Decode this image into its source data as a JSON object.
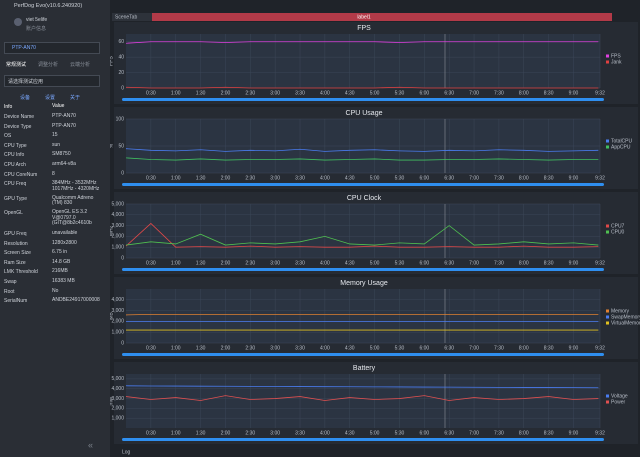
{
  "window": {
    "title": "PerfDog Evo(v10.6.240920)",
    "scene_tab": "SceneTab",
    "label": "label1",
    "log": "Log"
  },
  "sidebar": {
    "user": "viet 5elife",
    "account": "账户信息",
    "device": "PTP-AN70",
    "tabs": [
      "常规测试",
      "调整分析",
      "云端分析"
    ],
    "app_select": "请选择测试应用",
    "sub_tabs": [
      "设备",
      "设置",
      "关于"
    ],
    "info": {
      "header": [
        "Info",
        "Value"
      ],
      "rows": [
        [
          "Device Name",
          "PTP-AN70"
        ],
        [
          "Device Type",
          "PTP-AN70"
        ],
        [
          "OS",
          "15"
        ],
        [
          "CPU Type",
          "sun"
        ],
        [
          "CPU Info",
          "SM8750"
        ],
        [
          "CPU Arch",
          "arm64-v8a"
        ],
        [
          "CPU CoreNum",
          "8"
        ],
        [
          "CPU Freq",
          "384MHz - 3532MHz\n1017MHz - 4320MHz"
        ],
        [
          "GPU Type",
          "Qualcomm Adreno\n(TM) 830"
        ],
        [
          "OpenGL",
          "OpenGL ES 3.2\nV@0797.0\n(GIT@8b2c4610b"
        ],
        [
          "GPU Freq",
          "unavailable"
        ],
        [
          "Resolution",
          "1280x2800"
        ],
        [
          "Screen Size",
          "6.75 in"
        ],
        [
          "Ram Size",
          "14.8 GB"
        ],
        [
          "LMK Threshold",
          "216MB"
        ],
        [
          "Swap",
          "16383 MB"
        ],
        [
          "Root",
          "No"
        ],
        [
          "SerialNum",
          "ANDBE24917000008"
        ]
      ]
    }
  },
  "chart_data": [
    {
      "type": "line",
      "title": "FPS",
      "ylabel": "FPS",
      "xlim": [
        0,
        572
      ],
      "ylim": [
        0,
        70
      ],
      "yticks": [
        0,
        20,
        40,
        60
      ],
      "xticks": [
        {
          "value": 30,
          "label": "0:30"
        },
        {
          "value": 60,
          "label": "1:00"
        },
        {
          "value": 90,
          "label": "1:30"
        },
        {
          "value": 120,
          "label": "2:00"
        },
        {
          "value": 150,
          "label": "2:30"
        },
        {
          "value": 180,
          "label": "3:00"
        },
        {
          "value": 210,
          "label": "3:30"
        },
        {
          "value": 240,
          "label": "4:00"
        },
        {
          "value": 270,
          "label": "4:30"
        },
        {
          "value": 300,
          "label": "5:00"
        },
        {
          "value": 330,
          "label": "5:30"
        },
        {
          "value": 360,
          "label": "6:00"
        },
        {
          "value": 390,
          "label": "6:30"
        },
        {
          "value": 420,
          "label": "7:00"
        },
        {
          "value": 450,
          "label": "7:30"
        },
        {
          "value": 480,
          "label": "8:00"
        },
        {
          "value": 510,
          "label": "8:30"
        },
        {
          "value": 540,
          "label": "9:00"
        },
        {
          "value": 572,
          "label": "9:32"
        }
      ],
      "x": [
        0,
        30,
        60,
        90,
        120,
        150,
        180,
        210,
        240,
        270,
        300,
        330,
        360,
        390,
        420,
        450,
        480,
        510,
        540,
        570
      ],
      "series": [
        {
          "name": "FPS",
          "color": "#e040e0",
          "values": [
            58,
            60,
            60,
            60,
            59,
            60,
            60,
            60,
            60,
            60,
            60,
            59,
            60,
            60,
            60,
            60,
            60,
            60,
            60,
            60
          ]
        },
        {
          "name": "Jank",
          "color": "#e04040",
          "values": [
            1,
            0,
            0,
            0,
            1,
            0,
            0,
            0,
            0,
            0,
            0,
            1,
            0,
            0,
            0,
            0,
            0,
            0,
            0,
            0
          ]
        }
      ]
    },
    {
      "type": "line",
      "title": "CPU Usage",
      "ylabel": "%",
      "xlim": [
        0,
        572
      ],
      "ylim": [
        0,
        100
      ],
      "yticks": [
        0,
        50,
        100
      ],
      "xticks": [
        {
          "value": 30,
          "label": "0:30"
        },
        {
          "value": 60,
          "label": "1:00"
        },
        {
          "value": 90,
          "label": "1:30"
        },
        {
          "value": 120,
          "label": "2:00"
        },
        {
          "value": 150,
          "label": "2:30"
        },
        {
          "value": 180,
          "label": "3:00"
        },
        {
          "value": 210,
          "label": "3:30"
        },
        {
          "value": 240,
          "label": "4:00"
        },
        {
          "value": 270,
          "label": "4:30"
        },
        {
          "value": 300,
          "label": "5:00"
        },
        {
          "value": 330,
          "label": "5:30"
        },
        {
          "value": 360,
          "label": "6:00"
        },
        {
          "value": 390,
          "label": "6:30"
        },
        {
          "value": 420,
          "label": "7:00"
        },
        {
          "value": 450,
          "label": "7:30"
        },
        {
          "value": 480,
          "label": "8:00"
        },
        {
          "value": 510,
          "label": "8:30"
        },
        {
          "value": 540,
          "label": "9:00"
        },
        {
          "value": 572,
          "label": "9:32"
        }
      ],
      "x": [
        0,
        30,
        60,
        90,
        120,
        150,
        180,
        210,
        240,
        270,
        300,
        330,
        360,
        390,
        420,
        450,
        480,
        510,
        540,
        570
      ],
      "series": [
        {
          "name": "TotalCPU",
          "color": "#4a7cf0",
          "values": [
            45,
            42,
            41,
            43,
            40,
            42,
            41,
            44,
            40,
            42,
            43,
            41,
            40,
            42,
            41,
            43,
            42,
            40,
            41,
            42
          ]
        },
        {
          "name": "AppCPU",
          "color": "#40c060",
          "values": [
            28,
            25,
            24,
            26,
            24,
            25,
            25,
            26,
            24,
            25,
            26,
            24,
            24,
            25,
            25,
            26,
            25,
            24,
            25,
            25
          ]
        }
      ]
    },
    {
      "type": "line",
      "title": "CPU Clock",
      "ylabel": "MHz",
      "xlim": [
        0,
        572
      ],
      "ylim": [
        0,
        5000
      ],
      "yticks": [
        0,
        {
          "value": 1000,
          "label": "1,000"
        },
        {
          "value": 2000,
          "label": "2,000"
        },
        {
          "value": 3000,
          "label": "3,000"
        },
        {
          "value": 4000,
          "label": "4,000"
        },
        {
          "value": 5000,
          "label": "5,000"
        }
      ],
      "xticks": [
        {
          "value": 30,
          "label": "0:30"
        },
        {
          "value": 60,
          "label": "1:00"
        },
        {
          "value": 90,
          "label": "1:30"
        },
        {
          "value": 120,
          "label": "2:00"
        },
        {
          "value": 150,
          "label": "2:30"
        },
        {
          "value": 180,
          "label": "3:00"
        },
        {
          "value": 210,
          "label": "3:30"
        },
        {
          "value": 240,
          "label": "4:00"
        },
        {
          "value": 270,
          "label": "4:30"
        },
        {
          "value": 300,
          "label": "5:00"
        },
        {
          "value": 330,
          "label": "5:30"
        },
        {
          "value": 360,
          "label": "6:00"
        },
        {
          "value": 390,
          "label": "6:30"
        },
        {
          "value": 420,
          "label": "7:00"
        },
        {
          "value": 450,
          "label": "7:30"
        },
        {
          "value": 480,
          "label": "8:00"
        },
        {
          "value": 510,
          "label": "8:30"
        },
        {
          "value": 540,
          "label": "9:00"
        },
        {
          "value": 572,
          "label": "9:32"
        }
      ],
      "x": [
        0,
        30,
        60,
        90,
        120,
        150,
        180,
        210,
        240,
        270,
        300,
        330,
        360,
        390,
        420,
        450,
        480,
        510,
        540,
        570
      ],
      "series": [
        {
          "name": "CPU7",
          "color": "#e04848",
          "values": [
            1100,
            3200,
            1000,
            1050,
            1000,
            1100,
            1000,
            1050,
            1000,
            1000,
            1100,
            1000,
            1000,
            1050,
            1000,
            1000,
            1100,
            1000,
            1000,
            1050
          ]
        },
        {
          "name": "CPU0",
          "color": "#50c050",
          "values": [
            1200,
            1500,
            1300,
            2200,
            1200,
            1400,
            1300,
            1500,
            2000,
            1300,
            1200,
            1400,
            1300,
            3000,
            1200,
            1300,
            1500,
            1300,
            1400,
            1200
          ]
        }
      ]
    },
    {
      "type": "line",
      "title": "Memory Usage",
      "ylabel": "MB",
      "xlim": [
        0,
        572
      ],
      "ylim": [
        0,
        5000
      ],
      "yticks": [
        0,
        {
          "value": 1000,
          "label": "1,000"
        },
        {
          "value": 2000,
          "label": "2,000"
        },
        {
          "value": 3000,
          "label": "3,000"
        },
        {
          "value": 4000,
          "label": "4,000"
        }
      ],
      "xticks": [
        {
          "value": 30,
          "label": "0:30"
        },
        {
          "value": 60,
          "label": "1:00"
        },
        {
          "value": 90,
          "label": "1:30"
        },
        {
          "value": 120,
          "label": "2:00"
        },
        {
          "value": 150,
          "label": "2:30"
        },
        {
          "value": 180,
          "label": "3:00"
        },
        {
          "value": 210,
          "label": "3:30"
        },
        {
          "value": 240,
          "label": "4:00"
        },
        {
          "value": 270,
          "label": "4:30"
        },
        {
          "value": 300,
          "label": "5:00"
        },
        {
          "value": 330,
          "label": "5:30"
        },
        {
          "value": 360,
          "label": "6:00"
        },
        {
          "value": 390,
          "label": "6:30"
        },
        {
          "value": 420,
          "label": "7:00"
        },
        {
          "value": 450,
          "label": "7:30"
        },
        {
          "value": 480,
          "label": "8:00"
        },
        {
          "value": 510,
          "label": "8:30"
        },
        {
          "value": 540,
          "label": "9:00"
        },
        {
          "value": 572,
          "label": "9:32"
        }
      ],
      "x": [
        0,
        30,
        60,
        90,
        120,
        150,
        180,
        210,
        240,
        270,
        300,
        330,
        360,
        390,
        420,
        450,
        480,
        510,
        540,
        570
      ],
      "series": [
        {
          "name": "Memory",
          "color": "#e08030",
          "values": [
            2600,
            2650,
            2650,
            2650,
            2650,
            2650,
            2650,
            2650,
            2650,
            2650,
            2650,
            2650,
            2650,
            2650,
            2650,
            2650,
            2650,
            2650,
            2650,
            2650
          ]
        },
        {
          "name": "SwapMemory",
          "color": "#4a7cf0",
          "values": [
            2000,
            2000,
            2000,
            2000,
            2000,
            2000,
            2000,
            2000,
            2000,
            2000,
            2000,
            2000,
            2000,
            2000,
            2000,
            2000,
            2000,
            2000,
            2000,
            2000
          ]
        },
        {
          "name": "VirtualMemory",
          "color": "#e0c020",
          "values": [
            1200,
            1200,
            1200,
            1200,
            1200,
            1200,
            1200,
            1200,
            1200,
            1200,
            1200,
            1200,
            1200,
            1200,
            1200,
            1200,
            1200,
            1200,
            1200,
            1200
          ]
        }
      ]
    },
    {
      "type": "line",
      "title": "Battery",
      "ylabel": "mW",
      "xlim": [
        0,
        572
      ],
      "ylim": [
        0,
        5500
      ],
      "yticks": [
        {
          "value": 1000,
          "label": "1,000"
        },
        {
          "value": 2000,
          "label": "2,000"
        },
        {
          "value": 3000,
          "label": "3,000"
        },
        {
          "value": 4000,
          "label": "4,000"
        },
        {
          "value": 5000,
          "label": "5,000"
        }
      ],
      "xticks": [
        {
          "value": 30,
          "label": "0:30"
        },
        {
          "value": 60,
          "label": "1:00"
        },
        {
          "value": 90,
          "label": "1:30"
        },
        {
          "value": 120,
          "label": "2:00"
        },
        {
          "value": 150,
          "label": "2:30"
        },
        {
          "value": 180,
          "label": "3:00"
        },
        {
          "value": 210,
          "label": "3:30"
        },
        {
          "value": 240,
          "label": "4:00"
        },
        {
          "value": 270,
          "label": "4:30"
        },
        {
          "value": 300,
          "label": "5:00"
        },
        {
          "value": 330,
          "label": "5:30"
        },
        {
          "value": 360,
          "label": "6:00"
        },
        {
          "value": 390,
          "label": "6:30"
        },
        {
          "value": 420,
          "label": "7:00"
        },
        {
          "value": 450,
          "label": "7:30"
        },
        {
          "value": 480,
          "label": "8:00"
        },
        {
          "value": 510,
          "label": "8:30"
        },
        {
          "value": 540,
          "label": "9:00"
        },
        {
          "value": 572,
          "label": "9:32"
        }
      ],
      "x": [
        0,
        30,
        60,
        90,
        120,
        150,
        180,
        210,
        240,
        270,
        300,
        330,
        360,
        390,
        420,
        450,
        480,
        510,
        540,
        570
      ],
      "series": [
        {
          "name": "Voltage",
          "color": "#4a7cf0",
          "values": [
            4300,
            4280,
            4270,
            4260,
            4250,
            4240,
            4230,
            4220,
            4210,
            4200,
            4190,
            4180,
            4170,
            4160,
            4150,
            4140,
            4130,
            4120,
            4110,
            4100
          ]
        },
        {
          "name": "Power",
          "color": "#e05050",
          "values": [
            3200,
            2900,
            3100,
            2800,
            3300,
            2900,
            3000,
            3200,
            2800,
            3100,
            2900,
            3000,
            3300,
            2800,
            3100,
            2900,
            3000,
            3200,
            2900,
            3000
          ]
        }
      ]
    }
  ]
}
